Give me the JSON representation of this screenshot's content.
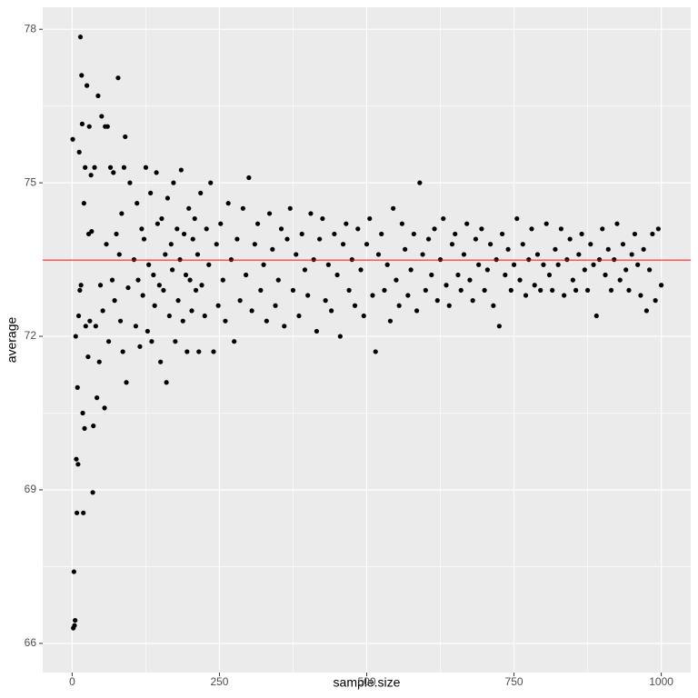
{
  "chart_data": {
    "type": "scatter",
    "x_label": "sample.size",
    "y_label": "average",
    "xlim": [
      -50,
      1050
    ],
    "ylim": [
      65.43,
      78.43
    ],
    "xticks": [
      0,
      250,
      500,
      750,
      1000
    ],
    "yticks": [
      66,
      69,
      72,
      75,
      78
    ],
    "x_minor_breaks": [
      125,
      375,
      625,
      875
    ],
    "y_minor_breaks": [
      67.5,
      70.5,
      73.5,
      76.5
    ],
    "grid": true,
    "color": "#000000",
    "reference_line": {
      "value": 73.49,
      "color": "#ff0000"
    },
    "x": [
      1,
      2,
      3,
      4,
      5,
      6,
      7,
      8,
      9,
      10,
      11,
      12,
      13,
      14,
      15,
      16,
      17,
      18,
      19,
      20,
      21,
      22,
      23,
      25,
      27,
      28,
      29,
      30,
      32,
      33,
      35,
      36,
      38,
      40,
      42,
      44,
      46,
      48,
      50,
      52,
      55,
      56,
      58,
      60,
      62,
      65,
      68,
      70,
      72,
      75,
      78,
      80,
      82,
      84,
      86,
      88,
      90,
      92,
      95,
      98,
      105,
      108,
      110,
      112,
      115,
      118,
      120,
      122,
      125,
      128,
      130,
      133,
      135,
      138,
      140,
      143,
      145,
      148,
      150,
      152,
      155,
      158,
      160,
      162,
      165,
      168,
      170,
      172,
      175,
      178,
      180,
      183,
      185,
      188,
      190,
      193,
      195,
      198,
      200,
      203,
      205,
      208,
      210,
      213,
      215,
      218,
      220,
      225,
      228,
      232,
      235,
      240,
      245,
      248,
      252,
      256,
      260,
      265,
      270,
      275,
      280,
      285,
      290,
      295,
      300,
      305,
      310,
      315,
      320,
      325,
      330,
      335,
      340,
      345,
      350,
      355,
      360,
      365,
      370,
      375,
      380,
      385,
      390,
      395,
      400,
      405,
      410,
      415,
      420,
      425,
      430,
      435,
      440,
      445,
      450,
      455,
      460,
      465,
      470,
      475,
      480,
      485,
      490,
      495,
      500,
      505,
      510,
      515,
      520,
      525,
      530,
      535,
      540,
      545,
      550,
      555,
      560,
      565,
      570,
      575,
      580,
      585,
      590,
      595,
      600,
      605,
      610,
      615,
      620,
      625,
      630,
      635,
      640,
      645,
      650,
      655,
      660,
      665,
      670,
      675,
      680,
      685,
      690,
      695,
      700,
      705,
      710,
      715,
      720,
      725,
      730,
      735,
      740,
      745,
      750,
      755,
      760,
      765,
      770,
      775,
      780,
      785,
      790,
      795,
      800,
      805,
      810,
      815,
      820,
      825,
      830,
      835,
      840,
      845,
      850,
      855,
      860,
      865,
      870,
      875,
      880,
      885,
      890,
      895,
      900,
      905,
      910,
      915,
      920,
      925,
      930,
      935,
      940,
      945,
      950,
      955,
      960,
      965,
      970,
      975,
      980,
      985,
      990,
      995,
      1000
    ],
    "values": [
      75.85,
      66.3,
      67.4,
      66.35,
      66.45,
      72,
      69.6,
      68.55,
      71,
      69.5,
      72.4,
      75.6,
      72.9,
      77.85,
      73,
      77.1,
      76.15,
      70.5,
      68.55,
      74.6,
      70.2,
      75.3,
      72.2,
      76.9,
      71.6,
      74,
      76.1,
      72.3,
      75.15,
      74.05,
      68.95,
      70.25,
      75.3,
      72.2,
      70.8,
      76.7,
      71.5,
      73,
      76.3,
      72.5,
      70.6,
      76.1,
      73.8,
      76.1,
      71.9,
      75.3,
      73.1,
      75.2,
      72.7,
      74,
      77.05,
      73.6,
      72.3,
      74.4,
      71.7,
      75.3,
      75.9,
      71.1,
      72.95,
      75.0,
      73.5,
      72.2,
      74.6,
      73.1,
      71.8,
      74.1,
      72.8,
      73.9,
      75.3,
      72.1,
      73.4,
      74.8,
      71.9,
      73.2,
      72.6,
      75.2,
      74.2,
      73.0,
      71.5,
      74.3,
      72.9,
      73.6,
      71.1,
      74.7,
      72.4,
      73.8,
      73.3,
      75.0,
      71.9,
      74.1,
      72.7,
      73.5,
      75.25,
      72.3,
      74.0,
      73.2,
      71.7,
      74.5,
      73.1,
      72.5,
      73.9,
      74.3,
      72.9,
      73.6,
      71.7,
      74.8,
      73.0,
      72.4,
      74.1,
      73.4,
      75.0,
      71.7,
      73.8,
      72.6,
      74.2,
      73.1,
      72.3,
      74.6,
      73.5,
      71.9,
      73.9,
      72.7,
      74.5,
      73.2,
      75.1,
      72.5,
      73.8,
      74.2,
      72.9,
      73.4,
      72.3,
      74.4,
      73.7,
      72.6,
      73.1,
      74.1,
      72.2,
      73.9,
      74.5,
      72.9,
      73.6,
      72.4,
      74.0,
      73.3,
      72.8,
      74.4,
      73.5,
      72.1,
      73.9,
      74.3,
      72.7,
      73.4,
      72.5,
      74.0,
      73.2,
      72.0,
      73.8,
      74.2,
      72.9,
      73.5,
      72.6,
      74.1,
      73.3,
      72.4,
      73.8,
      74.3,
      72.8,
      71.7,
      73.6,
      74.0,
      72.9,
      73.4,
      72.3,
      74.5,
      73.1,
      72.6,
      74.2,
      73.7,
      72.8,
      73.3,
      74.0,
      72.5,
      75.0,
      73.6,
      72.9,
      73.9,
      73.2,
      74.1,
      72.7,
      73.5,
      74.3,
      73.0,
      72.6,
      73.8,
      74.0,
      73.2,
      72.9,
      73.6,
      74.2,
      73.1,
      72.7,
      73.9,
      73.4,
      74.1,
      72.9,
      73.3,
      73.8,
      72.6,
      73.5,
      72.2,
      74.0,
      73.2,
      73.7,
      72.9,
      73.4,
      74.3,
      73.1,
      73.8,
      72.8,
      73.5,
      74.1,
      73.0,
      73.6,
      72.9,
      73.4,
      74.2,
      73.2,
      72.9,
      73.7,
      73.4,
      74.1,
      72.8,
      73.5,
      73.9,
      73.1,
      72.9,
      73.6,
      74.0,
      73.3,
      72.9,
      73.8,
      73.4,
      72.4,
      73.5,
      74.1,
      73.2,
      73.7,
      72.9,
      73.5,
      74.2,
      73.1,
      73.8,
      73.3,
      72.9,
      73.6,
      74.0,
      73.4,
      72.8,
      73.7,
      72.5,
      73.3,
      74.0,
      72.7,
      74.1,
      73.0
    ]
  }
}
